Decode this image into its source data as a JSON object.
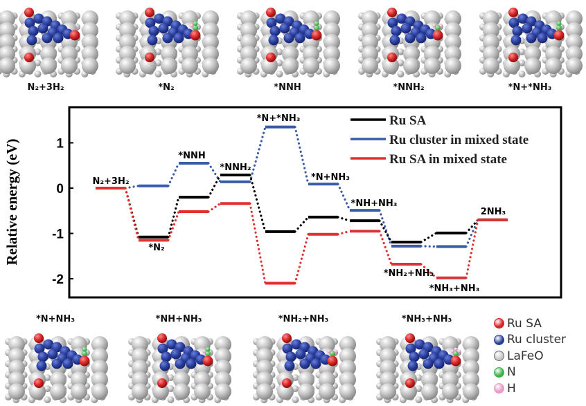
{
  "top_structures": [
    {
      "label": "N₂+3H₂"
    },
    {
      "label": "*N₂"
    },
    {
      "label": "*NNH"
    },
    {
      "label": "*NNH₂"
    },
    {
      "label": "*N+*NH₃"
    }
  ],
  "bottom_structures": [
    {
      "label": "*N+NH₃"
    },
    {
      "label": "*NH+NH₃"
    },
    {
      "label": "*NH₂+NH₃"
    },
    {
      "label": "*NH₃+NH₃"
    }
  ],
  "atom_legend": [
    {
      "label": "Ru SA",
      "color": "#d42424"
    },
    {
      "label": "Ru cluster",
      "color": "#2a3f9e"
    },
    {
      "label": "LaFeO",
      "color": "#c8c8c8"
    },
    {
      "label": "N",
      "color": "#3bb54a"
    },
    {
      "label": "H",
      "color": "#e89ac8"
    }
  ],
  "chart_data": {
    "type": "line",
    "subtype": "energy-level-diagram",
    "ylabel": "Relative energy (eV)",
    "xlabel": "",
    "ylim": [
      -2.5,
      1.6
    ],
    "yticks": [
      -2,
      -1,
      0,
      1
    ],
    "grid": false,
    "legend_placement": "top-right",
    "categories": [
      "N₂+3H₂",
      "*N₂",
      "*NNH",
      "*NNH₂",
      "*N+*NH₃",
      "*N+NH₃",
      "*NH+NH₃",
      "*NH₂+NH₃",
      "*NH₃+NH₃",
      "2NH₃"
    ],
    "series": [
      {
        "name": "Ru SA",
        "color": "#000000",
        "values": [
          0,
          -1.08,
          -0.2,
          0.29,
          -0.96,
          -0.64,
          -0.72,
          -1.19,
          -0.99,
          -0.7
        ]
      },
      {
        "name": "Ru cluster in mixed state",
        "color": "#3a5ba8",
        "values": [
          0,
          0.05,
          0.55,
          0.14,
          1.35,
          0.09,
          -0.49,
          -1.28,
          -1.29,
          -0.7
        ]
      },
      {
        "name": "Ru SA in mixed state",
        "color": "#e03030",
        "values": [
          0,
          -1.15,
          -0.52,
          -0.34,
          -2.1,
          -1.02,
          -0.95,
          -1.68,
          -1.98,
          -0.7
        ]
      }
    ]
  }
}
